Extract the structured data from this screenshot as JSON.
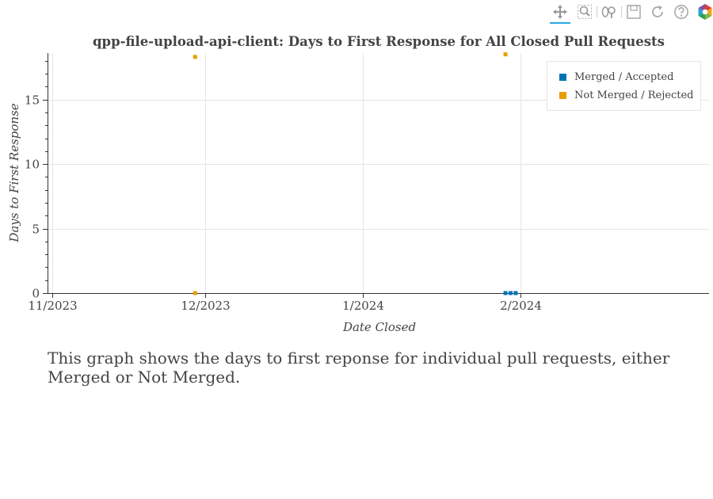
{
  "toolbar": {
    "tools": [
      {
        "name": "pan-icon",
        "active": true
      },
      {
        "name": "box-zoom-icon",
        "active": false
      },
      {
        "name": "wheel-zoom-icon",
        "active": false
      },
      {
        "name": "save-icon",
        "active": false
      },
      {
        "name": "reset-icon",
        "active": false
      },
      {
        "name": "help-icon",
        "active": false
      },
      {
        "name": "bokeh-logo-icon",
        "active": false
      }
    ]
  },
  "chart_data": {
    "type": "scatter",
    "title": "qpp-file-upload-api-client: Days to First Response for All Closed Pull Requests",
    "xlabel": "Date Closed",
    "ylabel": "Days to First Response",
    "x_type": "datetime",
    "xlim": [
      "2023-10-31",
      "2024-03-09"
    ],
    "ylim": [
      0,
      18.6
    ],
    "x_ticks": [
      {
        "value": "2023-11-01",
        "label": "11/2023"
      },
      {
        "value": "2023-12-01",
        "label": "12/2023"
      },
      {
        "value": "2024-01-01",
        "label": "1/2024"
      },
      {
        "value": "2024-02-01",
        "label": "2/2024"
      }
    ],
    "y_ticks": [
      {
        "value": 0,
        "label": "0"
      },
      {
        "value": 5,
        "label": "5"
      },
      {
        "value": 10,
        "label": "10"
      },
      {
        "value": 15,
        "label": "15"
      }
    ],
    "grid": true,
    "legend_position": "top-right",
    "series": [
      {
        "name": "Merged / Accepted",
        "color": "#0072b2",
        "points": [
          {
            "x": "2024-01-29",
            "y": 0
          },
          {
            "x": "2024-01-30",
            "y": 0
          },
          {
            "x": "2024-01-31",
            "y": 0
          }
        ]
      },
      {
        "name": "Not Merged / Rejected",
        "color": "#e69f00",
        "points": [
          {
            "x": "2023-11-29",
            "y": 18.3
          },
          {
            "x": "2023-11-29",
            "y": 0
          },
          {
            "x": "2024-01-29",
            "y": 18.5
          }
        ]
      }
    ]
  },
  "description": "This graph shows the days to first reponse for individual pull requests, either Merged or Not Merged."
}
